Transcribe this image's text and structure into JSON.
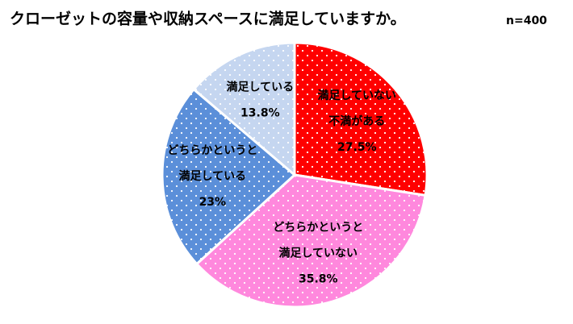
{
  "chart_data": {
    "type": "pie",
    "title": "クローゼットの容量や収納スペースに満足していますか。",
    "subtitle": "n=400",
    "categories": [
      [
        "満足していない",
        "不満がある"
      ],
      [
        "どちらかというと",
        "満足していない"
      ],
      [
        "どちらかというと",
        "満足している"
      ],
      [
        "満足している"
      ]
    ],
    "values": [
      27.5,
      35.8,
      23,
      13.8
    ],
    "value_labels": [
      "27.5%",
      "35.8%",
      "23%",
      "13.8%"
    ],
    "colors": [
      "#ff0000",
      "#ff88dd",
      "#5b8fd9",
      "#c5d6f0"
    ]
  }
}
